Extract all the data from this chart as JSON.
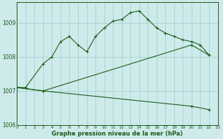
{
  "title": "Graphe pression niveau de la mer (hPa)",
  "bg_color": "#ceeaea",
  "grid_color": "#aad4d4",
  "line_color": "#1a5c1a",
  "xlim": [
    0,
    23
  ],
  "ylim": [
    1006.0,
    1009.6
  ],
  "yticks": [
    1006,
    1007,
    1008,
    1009
  ],
  "xticks": [
    0,
    1,
    2,
    3,
    4,
    5,
    6,
    7,
    8,
    9,
    10,
    11,
    12,
    13,
    14,
    15,
    16,
    17,
    18,
    19,
    20,
    21,
    22,
    23
  ],
  "line1_x": [
    0,
    1,
    3,
    4,
    5,
    6,
    7,
    8,
    9,
    10,
    11,
    12,
    13,
    14,
    15,
    16,
    17,
    18,
    19,
    20,
    21,
    22
  ],
  "line1_y": [
    1007.1,
    1007.1,
    1007.8,
    1008.0,
    1008.45,
    1008.6,
    1008.35,
    1008.15,
    1008.6,
    1008.85,
    1009.05,
    1009.1,
    1009.3,
    1009.35,
    1009.1,
    1008.85,
    1008.7,
    1008.6,
    1008.5,
    1008.45,
    1008.35,
    1008.05
  ],
  "line2_x": [
    0,
    3,
    20,
    22
  ],
  "line2_y": [
    1007.1,
    1007.0,
    1008.35,
    1008.05
  ],
  "line3_x": [
    0,
    3,
    20,
    22
  ],
  "line3_y": [
    1007.1,
    1007.0,
    1006.55,
    1006.45
  ]
}
